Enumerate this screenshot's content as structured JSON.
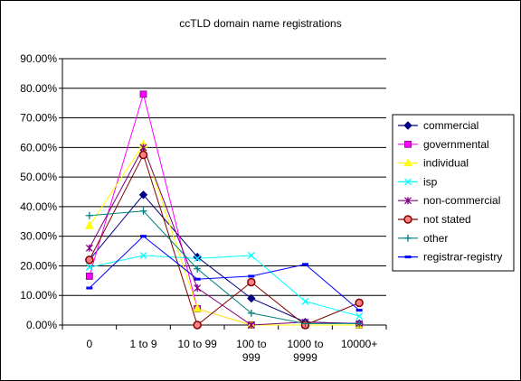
{
  "chart_data": {
    "type": "line",
    "title": "ccTLD domain name registrations",
    "categories": [
      [
        "0"
      ],
      [
        "1 to 9"
      ],
      [
        "10 to 99"
      ],
      [
        "100 to",
        "999"
      ],
      [
        "1000 to",
        "9999"
      ],
      [
        "10000+"
      ]
    ],
    "y_ticks": [
      "0.00%",
      "10.00%",
      "20.00%",
      "30.00%",
      "40.00%",
      "50.00%",
      "60.00%",
      "70.00%",
      "80.00%",
      "90.00%"
    ],
    "ylim": [
      0,
      0.9
    ],
    "grid": true,
    "legend_position": "right",
    "series": [
      {
        "name": "commercial",
        "color": "#000080",
        "marker": "diamond",
        "values": [
          0.22,
          0.44,
          0.23,
          0.09,
          0.01,
          0.005
        ]
      },
      {
        "name": "governmental",
        "color": "#ff00ff",
        "marker": "square",
        "values": [
          0.165,
          0.78,
          0.055,
          0.0,
          0.0,
          0.0
        ]
      },
      {
        "name": "individual",
        "color": "#ffff00",
        "marker": "triangle",
        "values": [
          0.335,
          0.61,
          0.055,
          0.0,
          0.0,
          0.0
        ]
      },
      {
        "name": "isp",
        "color": "#00ffff",
        "marker": "x",
        "values": [
          0.195,
          0.235,
          0.225,
          0.235,
          0.08,
          0.03
        ]
      },
      {
        "name": "non-commercial",
        "color": "#800080",
        "marker": "star",
        "values": [
          0.26,
          0.6,
          0.125,
          0.0,
          0.01,
          0.005
        ]
      },
      {
        "name": "not stated",
        "color": "#800000",
        "marker": "circle",
        "values": [
          0.22,
          0.575,
          0.0,
          0.145,
          0.0,
          0.075
        ]
      },
      {
        "name": "other",
        "color": "#008080",
        "marker": "plus",
        "values": [
          0.37,
          0.385,
          0.19,
          0.04,
          0.005,
          0.005
        ]
      },
      {
        "name": "registrar-registry",
        "color": "#0000ff",
        "marker": "dash",
        "values": [
          0.125,
          0.3,
          0.155,
          0.165,
          0.205,
          0.05
        ]
      }
    ]
  }
}
